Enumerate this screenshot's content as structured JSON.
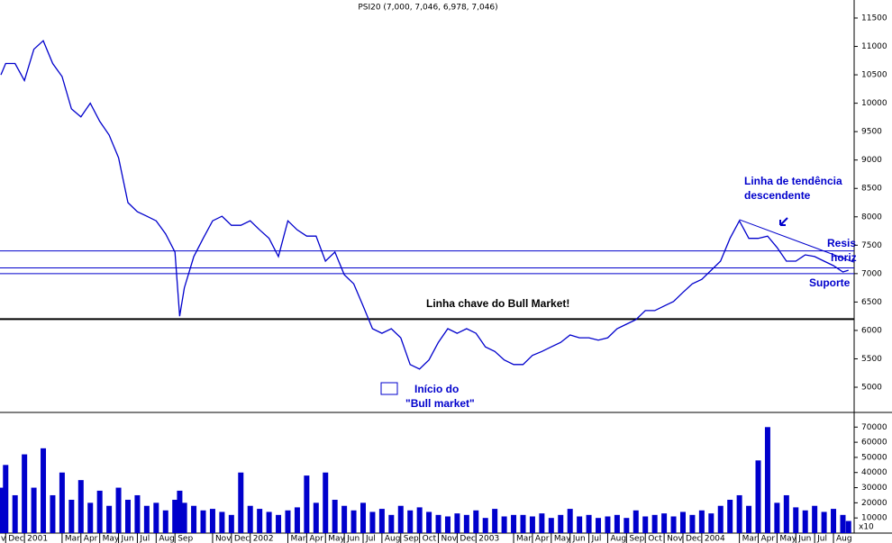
{
  "chart_data": [
    {
      "type": "line",
      "title": "PSI20 (7,000, 7,046, 6,978, 7,046)",
      "x": [
        0.75,
        1,
        1.5,
        2,
        2.5,
        3,
        3.5,
        4,
        4.5,
        5,
        5.5,
        6,
        6.5,
        7,
        7.5,
        8,
        8.5,
        9,
        9.5,
        10,
        10.25,
        10.5,
        11,
        11.5,
        12,
        12.5,
        13,
        13.5,
        14,
        14.5,
        15,
        15.5,
        16,
        16.5,
        17,
        17.5,
        18,
        18.5,
        19,
        19.5,
        20,
        20.5,
        21,
        21.5,
        22,
        22.5,
        23,
        23.5,
        24,
        24.5,
        25,
        25.5,
        26,
        26.5,
        27,
        27.5,
        28,
        28.5,
        29,
        29.5,
        30,
        30.5,
        31,
        31.5,
        32,
        32.5,
        33,
        33.5,
        34,
        34.5,
        35,
        35.5,
        36,
        36.5,
        37,
        37.5,
        38,
        38.5,
        39,
        39.5,
        40,
        40.5,
        41,
        41.5,
        42,
        42.5,
        43,
        43.5,
        44,
        44.5,
        45,
        45.5,
        45.8
      ],
      "series": [
        {
          "name": "PSI20",
          "color": "#0000cc",
          "values": [
            10500,
            10700,
            10700,
            10400,
            10950,
            11100,
            10700,
            10470,
            9900,
            9760,
            10000,
            9680,
            9440,
            9040,
            8250,
            8090,
            8010,
            7930,
            7700,
            7380,
            6250,
            6750,
            7300,
            7620,
            7930,
            8010,
            7850,
            7850,
            7930,
            7770,
            7620,
            7300,
            7930,
            7770,
            7660,
            7660,
            7220,
            7380,
            6980,
            6820,
            6430,
            6030,
            5950,
            6030,
            5870,
            5400,
            5320,
            5480,
            5790,
            6030,
            5950,
            6030,
            5950,
            5710,
            5630,
            5480,
            5400,
            5400,
            5560,
            5630,
            5710,
            5790,
            5920,
            5870,
            5870,
            5830,
            5870,
            6030,
            6110,
            6190,
            6350,
            6350,
            6430,
            6510,
            6670,
            6820,
            6900,
            7060,
            7220,
            7620,
            7930,
            7620,
            7620,
            7660,
            7460,
            7220,
            7220,
            7330,
            7300,
            7220,
            7140,
            7030,
            7060
          ]
        }
      ],
      "xlim": [
        0.7,
        46.1
      ],
      "ylim": [
        4604,
        11817
      ],
      "yticks": [
        5000,
        5500,
        6000,
        6500,
        7000,
        7500,
        8000,
        8500,
        9000,
        9500,
        10000,
        10500,
        11000,
        11500
      ],
      "hlines": [
        7400,
        7100,
        7000
      ],
      "hline_color": "#0000cc",
      "key_level": 6200,
      "key_level_color": "#000000",
      "trendline": {
        "x": [
          40,
          46.1
        ],
        "values": [
          7950,
          7200
        ],
        "color": "#0000cc"
      },
      "annotations": [
        "Linha de tendência",
        "descendente",
        "Resis",
        "horiz",
        "Suporte",
        "Linha chave do Bull Market!",
        "Início do",
        "\"Bull market\""
      ]
    },
    {
      "type": "bar",
      "axis_label": "x10",
      "x": [
        0.75,
        1,
        1.5,
        2,
        2.5,
        3,
        3.5,
        4,
        4.5,
        5,
        5.5,
        6,
        6.5,
        7,
        7.5,
        8,
        8.5,
        9,
        9.5,
        10,
        10.25,
        10.5,
        11,
        11.5,
        12,
        12.5,
        13,
        13.5,
        14,
        14.5,
        15,
        15.5,
        16,
        16.5,
        17,
        17.5,
        18,
        18.5,
        19,
        19.5,
        20,
        20.5,
        21,
        21.5,
        22,
        22.5,
        23,
        23.5,
        24,
        24.5,
        25,
        25.5,
        26,
        26.5,
        27,
        27.5,
        28,
        28.5,
        29,
        29.5,
        30,
        30.5,
        31,
        31.5,
        32,
        32.5,
        33,
        33.5,
        34,
        34.5,
        35,
        35.5,
        36,
        36.5,
        37,
        37.5,
        38,
        38.5,
        39,
        39.5,
        40,
        40.5,
        41,
        41.5,
        42,
        42.5,
        43,
        43.5,
        44,
        44.5,
        45,
        45.5,
        45.8
      ],
      "series": [
        {
          "name": "Volume",
          "color": "#0000cc",
          "values": [
            30000,
            45000,
            25000,
            52000,
            30000,
            56000,
            25000,
            40000,
            22000,
            35000,
            20000,
            28000,
            18000,
            30000,
            22000,
            25000,
            18000,
            20000,
            15000,
            22000,
            28000,
            20000,
            18000,
            15000,
            16000,
            14000,
            12000,
            40000,
            18000,
            16000,
            14000,
            12000,
            15000,
            17000,
            38000,
            20000,
            40000,
            22000,
            18000,
            15000,
            20000,
            14000,
            16000,
            12000,
            18000,
            15000,
            17000,
            14000,
            12000,
            11000,
            13000,
            12000,
            15000,
            10000,
            16000,
            11000,
            12000,
            12000,
            11000,
            13000,
            10000,
            12000,
            16000,
            11000,
            12000,
            10000,
            11000,
            12000,
            10000,
            15000,
            11000,
            12000,
            13000,
            11000,
            14000,
            12000,
            15000,
            13000,
            18000,
            22000,
            25000,
            18000,
            48000,
            70000,
            20000,
            25000,
            17000,
            15000,
            18000,
            14000,
            16000,
            12000,
            8000
          ]
        }
      ],
      "xlim": [
        0.7,
        46.1
      ],
      "ylim": [
        0,
        78500
      ],
      "yticks": [
        10000,
        20000,
        30000,
        40000,
        50000,
        60000,
        70000
      ],
      "xticks": [
        {
          "value": 0,
          "label": "v"
        },
        {
          "value": 1,
          "label": "Dec"
        },
        {
          "value": 2,
          "label": "2001"
        },
        {
          "value": 4,
          "label": "Mar"
        },
        {
          "value": 5,
          "label": "Apr"
        },
        {
          "value": 6,
          "label": "May"
        },
        {
          "value": 7,
          "label": "Jun"
        },
        {
          "value": 8,
          "label": "Jul"
        },
        {
          "value": 9,
          "label": "Aug"
        },
        {
          "value": 10,
          "label": "Sep"
        },
        {
          "value": 12,
          "label": "Nov"
        },
        {
          "value": 13,
          "label": "Dec"
        },
        {
          "value": 14,
          "label": "2002"
        },
        {
          "value": 16,
          "label": "Mar"
        },
        {
          "value": 17,
          "label": "Apr"
        },
        {
          "value": 18,
          "label": "May"
        },
        {
          "value": 19,
          "label": "Jun"
        },
        {
          "value": 20,
          "label": "Jul"
        },
        {
          "value": 21,
          "label": "Aug"
        },
        {
          "value": 22,
          "label": "Sep"
        },
        {
          "value": 23,
          "label": "Oct"
        },
        {
          "value": 24,
          "label": "Nov"
        },
        {
          "value": 25,
          "label": "Dec"
        },
        {
          "value": 26,
          "label": "2003"
        },
        {
          "value": 28,
          "label": "Mar"
        },
        {
          "value": 29,
          "label": "Apr"
        },
        {
          "value": 30,
          "label": "May"
        },
        {
          "value": 31,
          "label": "Jun"
        },
        {
          "value": 32,
          "label": "Jul"
        },
        {
          "value": 33,
          "label": "Aug"
        },
        {
          "value": 34,
          "label": "Sep"
        },
        {
          "value": 35,
          "label": "Oct"
        },
        {
          "value": 36,
          "label": "Nov"
        },
        {
          "value": 37,
          "label": "Dec"
        },
        {
          "value": 38,
          "label": "2004"
        },
        {
          "value": 40,
          "label": "Mar"
        },
        {
          "value": 41,
          "label": "Apr"
        },
        {
          "value": 42,
          "label": "May"
        },
        {
          "value": 43,
          "label": "Jun"
        },
        {
          "value": 44,
          "label": "Jul"
        },
        {
          "value": 45,
          "label": "Aug"
        }
      ]
    }
  ]
}
